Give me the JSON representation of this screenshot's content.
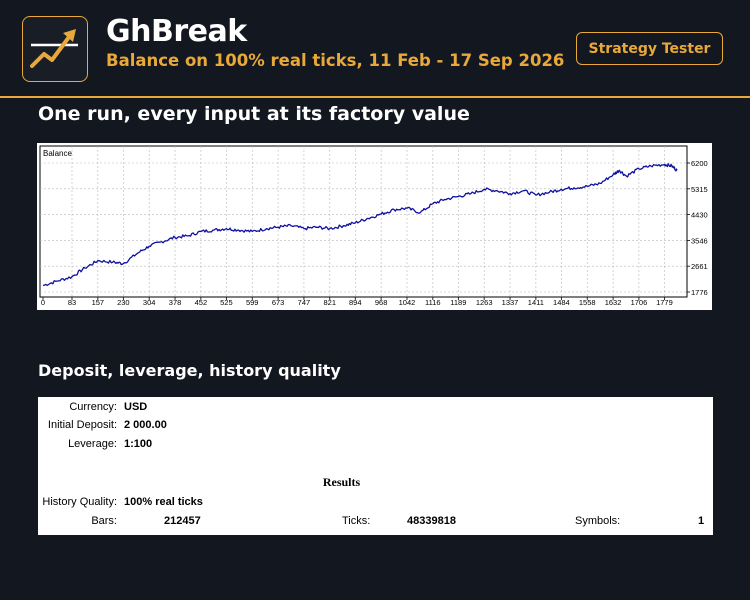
{
  "header": {
    "logo_icon": "trend-up-arrow-icon",
    "title": "GhBreak",
    "subtitle": "Balance on 100% real ticks, 11 Feb - 17 Sep 2026",
    "badge": "Strategy Tester"
  },
  "sections": {
    "chart_title": "One run, every input at its factory value",
    "report_title": "Deposit, leverage, history quality"
  },
  "chart_data": {
    "type": "line",
    "title": "Balance",
    "x_ticks": [
      "0",
      "83",
      "157",
      "230",
      "304",
      "378",
      "452",
      "525",
      "599",
      "673",
      "747",
      "821",
      "894",
      "968",
      "1042",
      "1116",
      "1189",
      "1263",
      "1337",
      "1411",
      "1484",
      "1558",
      "1632",
      "1706",
      "1779"
    ],
    "y_ticks": [
      "1776",
      "2661",
      "3546",
      "4430",
      "5315",
      "6200"
    ],
    "xlim": [
      0,
      1815
    ],
    "ylim": [
      1776,
      6200
    ],
    "grid": true,
    "series": [
      {
        "color": "#1010a0",
        "x": [
          0,
          40,
          83,
          120,
          157,
          200,
          230,
          270,
          304,
          340,
          378,
          415,
          452,
          490,
          525,
          560,
          599,
          640,
          673,
          710,
          747,
          785,
          821,
          860,
          894,
          930,
          968,
          1005,
          1042,
          1080,
          1116,
          1150,
          1189,
          1225,
          1263,
          1300,
          1337,
          1375,
          1411,
          1450,
          1484,
          1520,
          1558,
          1595,
          1632,
          1650,
          1670,
          1706,
          1740,
          1779,
          1800,
          1815
        ],
        "y": [
          2000,
          2150,
          2300,
          2600,
          2850,
          2800,
          2750,
          3100,
          3350,
          3500,
          3650,
          3700,
          3850,
          3900,
          3950,
          3900,
          3850,
          3950,
          4000,
          4050,
          3950,
          4000,
          3950,
          4050,
          4150,
          4300,
          4450,
          4600,
          4650,
          4500,
          4800,
          4950,
          5050,
          5150,
          5300,
          5250,
          5150,
          5250,
          5100,
          5200,
          5300,
          5350,
          5400,
          5500,
          5800,
          5950,
          5750,
          6000,
          6100,
          6150,
          6100,
          5950
        ]
      }
    ]
  },
  "report": {
    "currency_label": "Currency:",
    "currency_value": "USD",
    "deposit_label": "Initial Deposit:",
    "deposit_value": "2 000.00",
    "leverage_label": "Leverage:",
    "leverage_value": "1:100",
    "results_heading": "Results",
    "quality_label": "History Quality:",
    "quality_value": "100% real ticks",
    "bars_label": "Bars:",
    "bars_value": "212457",
    "ticks_label": "Ticks:",
    "ticks_value": "48339818",
    "symbols_label": "Symbols:",
    "symbols_value": "1"
  },
  "colors": {
    "background": "#13171f",
    "accent": "#e8a93a",
    "line": "#1010a0"
  }
}
